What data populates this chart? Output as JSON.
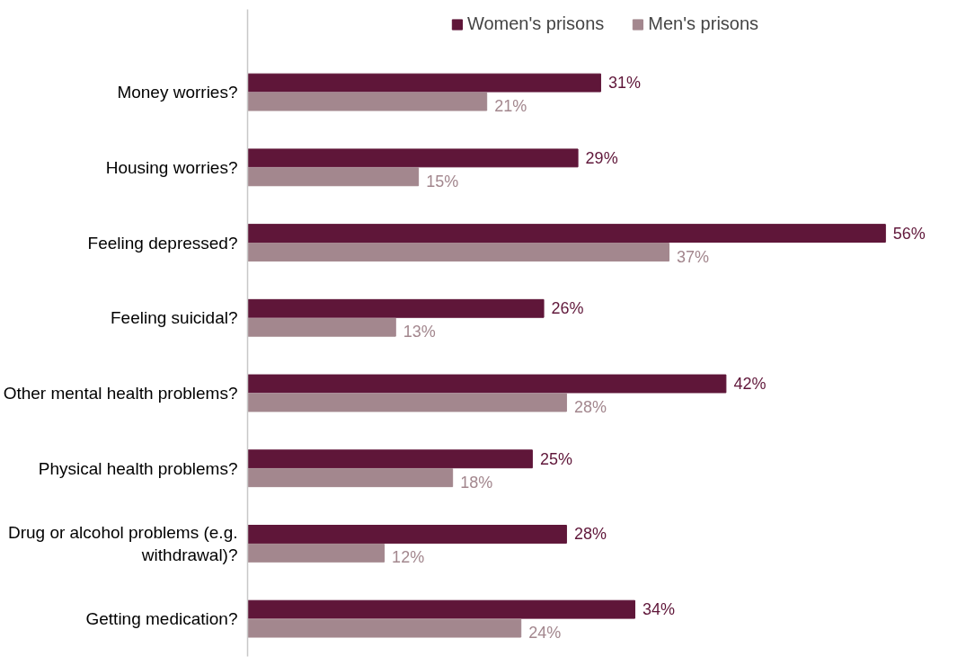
{
  "chart_data": {
    "type": "bar",
    "orientation": "horizontal",
    "legend": "top",
    "grid": false,
    "categories": [
      "Money worries?",
      "Housing worries?",
      "Feeling depressed?",
      "Feeling suicidal?",
      "Other mental health problems?",
      "Physical health problems?",
      "Drug or alcohol problems (e.g. withdrawal)?",
      "Getting medication?"
    ],
    "series": [
      {
        "name": "Women's prisons",
        "color": "#5f1639",
        "values": [
          31,
          29,
          56,
          26,
          42,
          25,
          28,
          34
        ],
        "value_labels": [
          "31%",
          "29%",
          "56%",
          "26%",
          "42%",
          "25%",
          "28%",
          "34%"
        ]
      },
      {
        "name": "Men's prisons",
        "color": "#a3878e",
        "values": [
          21,
          15,
          37,
          13,
          28,
          18,
          12,
          24
        ],
        "value_labels": [
          "21%",
          "15%",
          "37%",
          "13%",
          "28%",
          "18%",
          "12%",
          "24%"
        ]
      }
    ]
  }
}
